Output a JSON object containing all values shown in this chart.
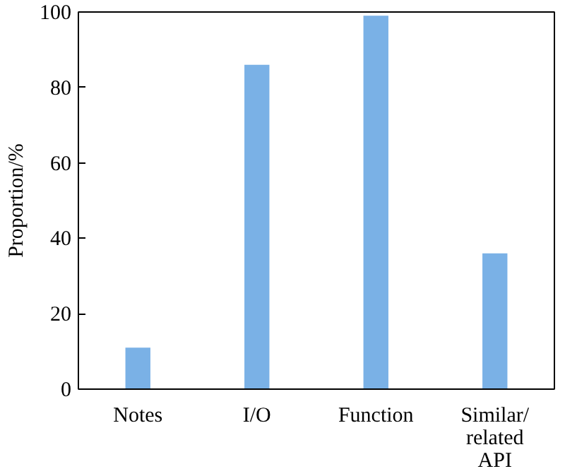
{
  "chart_data": {
    "type": "bar",
    "ylabel": "Proportion/%",
    "categories": [
      "Notes",
      "I/O",
      "Function",
      "Similar/\nrelated\nAPI"
    ],
    "values": [
      11,
      86,
      99,
      36
    ],
    "color": "#7ab1e6",
    "ylim": [
      0,
      100
    ],
    "yticks": [
      0,
      20,
      40,
      60,
      80,
      100
    ],
    "grid": false
  }
}
